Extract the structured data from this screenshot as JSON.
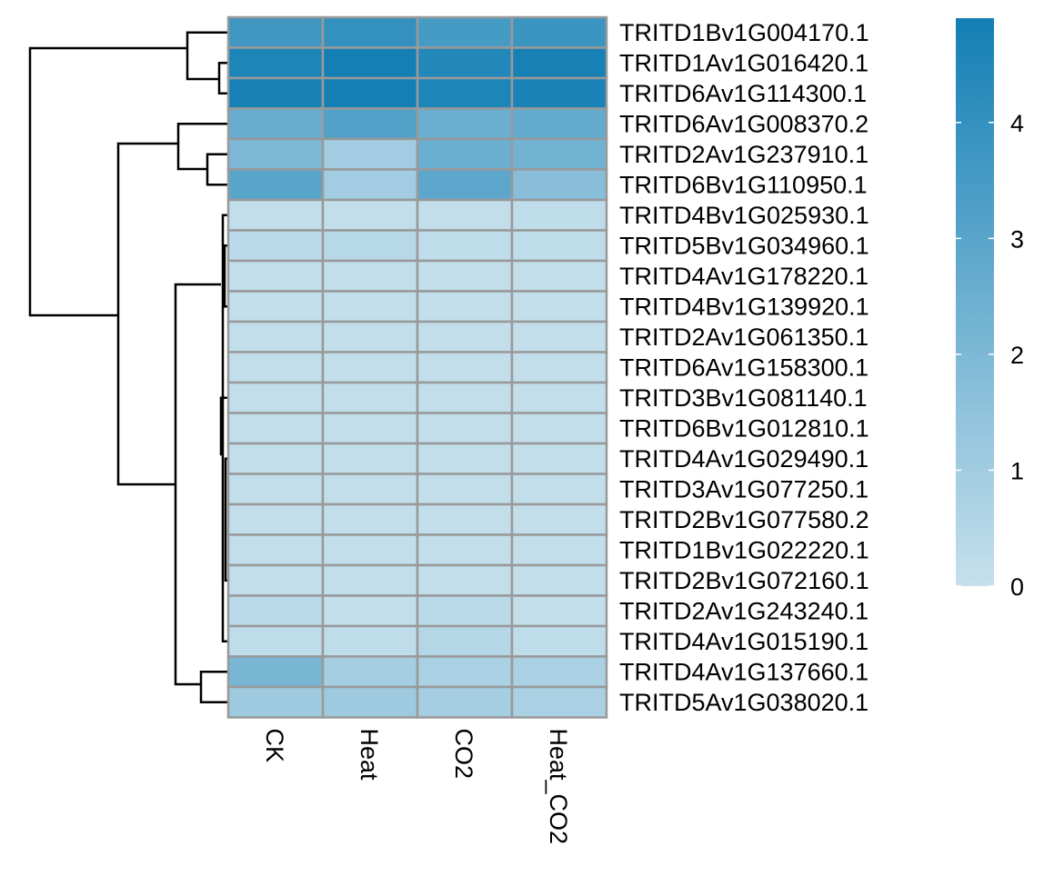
{
  "chart_data": {
    "type": "heatmap",
    "columns": [
      "CK",
      "Heat",
      "CO2",
      "Heat_CO2"
    ],
    "rows": [
      "TRITD1Bv1G004170.1",
      "TRITD1Av1G016420.1",
      "TRITD6Av1G114300.1",
      "TRITD6Av1G008370.2",
      "TRITD2Av1G237910.1",
      "TRITD6Bv1G110950.1",
      "TRITD4Bv1G025930.1",
      "TRITD5Bv1G034960.1",
      "TRITD4Av1G178220.1",
      "TRITD4Bv1G139920.1",
      "TRITD2Av1G061350.1",
      "TRITD6Av1G158300.1",
      "TRITD3Bv1G081140.1",
      "TRITD6Bv1G012810.1",
      "TRITD4Av1G029490.1",
      "TRITD3Av1G077250.1",
      "TRITD2Bv1G077580.2",
      "TRITD1Bv1G022220.1",
      "TRITD2Bv1G072160.1",
      "TRITD2Av1G243240.1",
      "TRITD4Av1G015190.1",
      "TRITD4Av1G137660.1",
      "TRITD5Av1G038020.1"
    ],
    "values": [
      [
        3.7,
        4.0,
        3.5,
        3.8
      ],
      [
        4.6,
        4.9,
        4.5,
        4.8
      ],
      [
        4.8,
        4.9,
        4.6,
        4.7
      ],
      [
        2.6,
        3.2,
        2.5,
        2.7
      ],
      [
        2.0,
        1.0,
        2.5,
        2.3
      ],
      [
        3.0,
        1.0,
        2.9,
        1.7
      ],
      [
        0.1,
        0.1,
        0.1,
        0.2
      ],
      [
        0.3,
        0.4,
        0.2,
        0.2
      ],
      [
        0.1,
        0.1,
        0.1,
        0.1
      ],
      [
        0.1,
        0.1,
        0.1,
        0.1
      ],
      [
        0.1,
        0.1,
        0.1,
        0.1
      ],
      [
        0.1,
        0.1,
        0.1,
        0.1
      ],
      [
        0.1,
        0.1,
        0.1,
        0.1
      ],
      [
        0.1,
        0.1,
        0.1,
        0.1
      ],
      [
        0.1,
        0.1,
        0.1,
        0.1
      ],
      [
        0.1,
        0.1,
        0.1,
        0.1
      ],
      [
        0.1,
        0.1,
        0.1,
        0.1
      ],
      [
        0.1,
        0.1,
        0.1,
        0.1
      ],
      [
        0.1,
        0.1,
        0.1,
        0.1
      ],
      [
        0.3,
        0.1,
        0.3,
        0.1
      ],
      [
        0.2,
        0.2,
        0.5,
        0.2
      ],
      [
        2.1,
        0.9,
        0.8,
        0.8
      ],
      [
        1.1,
        1.1,
        0.9,
        0.8
      ]
    ],
    "color_scale": {
      "min": 0,
      "max": 4.9,
      "low_color": "#c6e0ec",
      "high_color": "#137fb5",
      "ticks": [
        0,
        1,
        2,
        3,
        4
      ],
      "tick_labels": [
        "0",
        "1",
        "2",
        "3",
        "4"
      ]
    },
    "cell_border_color": "#999999",
    "row_dendrogram": "left",
    "legend_position": "right",
    "title": "",
    "xlabel": "",
    "ylabel": ""
  }
}
